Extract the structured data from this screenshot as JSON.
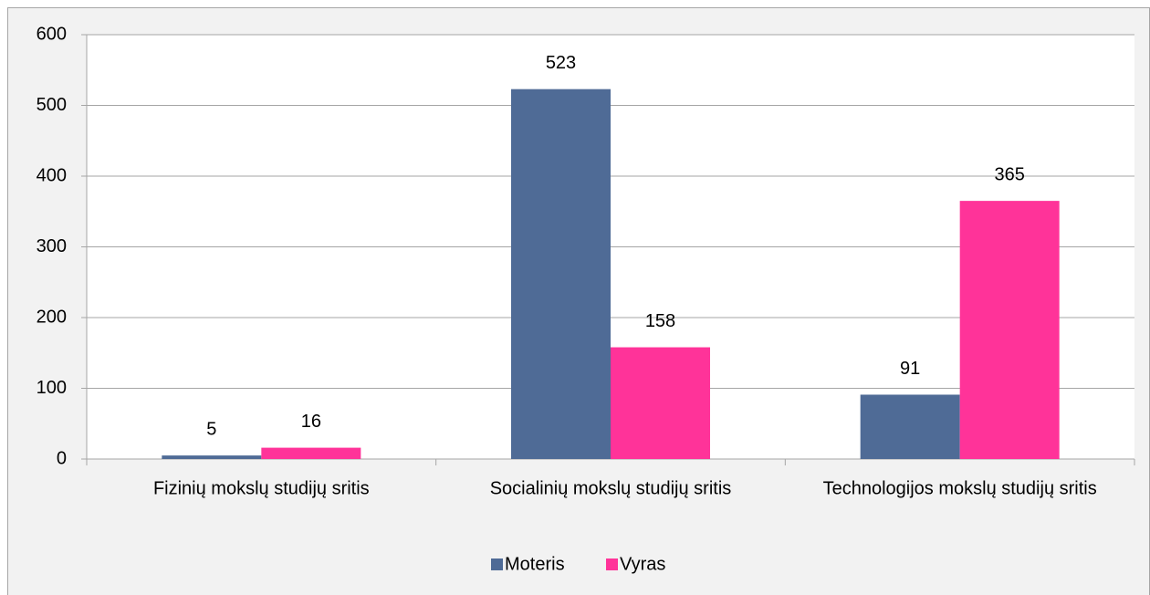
{
  "chart_data": {
    "type": "bar",
    "categories": [
      "Fizinių mokslų studijų sritis",
      "Socialinių mokslų studijų sritis",
      "Technologijos mokslų studijų sritis"
    ],
    "series": [
      {
        "name": "Moteris",
        "color": "#4f6b96",
        "values": [
          5,
          523,
          91
        ]
      },
      {
        "name": "Vyras",
        "color": "#ff3399",
        "values": [
          16,
          158,
          365
        ]
      }
    ],
    "ylim": [
      0,
      600
    ],
    "yticks": [
      0,
      100,
      200,
      300,
      400,
      500,
      600
    ],
    "grid": true,
    "legend": "bottom"
  }
}
